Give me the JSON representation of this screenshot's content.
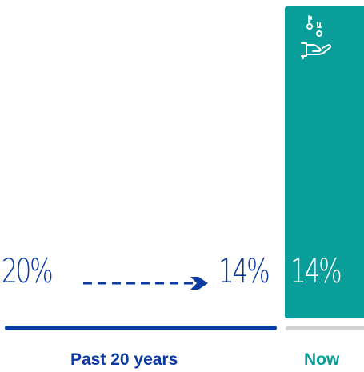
{
  "past": {
    "start_value": "20%",
    "end_value": "14%",
    "label": "Past 20 years"
  },
  "now": {
    "value": "14%",
    "label": "Now"
  },
  "icons": {
    "now_panel": "hand-with-coins-icon",
    "trend": "dashed-arrow-right-icon"
  },
  "colors": {
    "past_blue": "#0b3aa0",
    "now_teal": "#0a9e9b",
    "now_underline_gray": "#d2d2d2",
    "now_value_text": "#ffffff"
  }
}
